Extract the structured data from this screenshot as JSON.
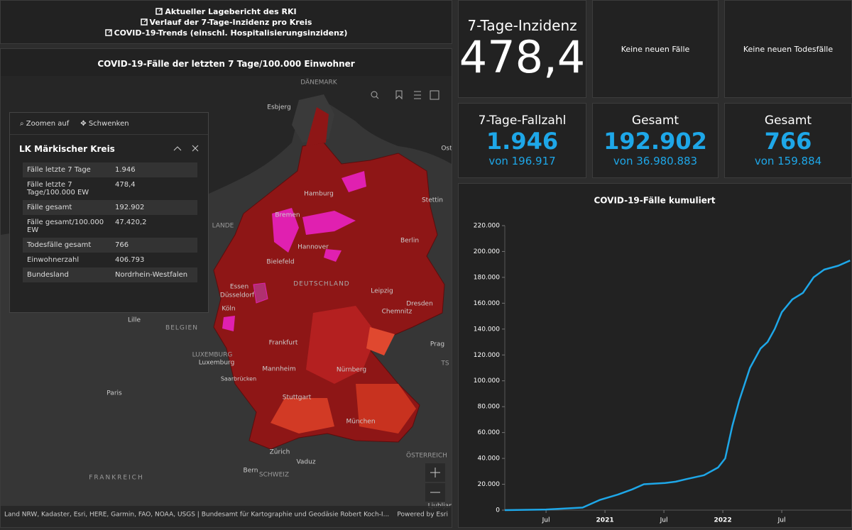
{
  "links": [
    "Aktueller Lagebericht des RKI",
    "Verlauf der 7-Tage-Inzidenz pro Kreis",
    "COVID-19-Trends (einschl. Hospitalisierungsinzidenz)"
  ],
  "map": {
    "title": "COVID-19-Fälle der letzten 7 Tage/100.000 Einwohner",
    "labels": [
      "DÄNEMARK",
      "Esbjerg",
      "Hamburg",
      "Stettin",
      "Bremen",
      "Berlin",
      "Hannover",
      "Bielefeld",
      "DEUTSCHLAND",
      "Essen",
      "Leipzig",
      "Düsseldorf",
      "Dresden",
      "Köln",
      "Chemnitz",
      "Lille",
      "BELGIEN",
      "Frankfurt",
      "Prag",
      "LUXEMBURG",
      "Luxemburg",
      "Mannheim",
      "Nürnberg",
      "Saarbrücken",
      "Paris",
      "Stuttgart",
      "München",
      "Zürich",
      "ÖSTERREICH",
      "Vaduz",
      "Bern",
      "SCHWEIZ",
      "FRANKREICH",
      "Ljubljana",
      "Ost",
      "LANDE",
      "TS"
    ],
    "popup": {
      "tools": [
        "Zoomen auf",
        "Schwenken"
      ],
      "title": "LK Märkischer Kreis",
      "rows": [
        [
          "Fälle letzte 7 Tage",
          "1.946"
        ],
        [
          "Fälle letzte 7 Tage/100.000 EW",
          "478,4"
        ],
        [
          "Fälle gesamt",
          "192.902"
        ],
        [
          "Fälle gesamt/100.000 EW",
          "47.420,2"
        ],
        [
          "Todesfälle gesamt",
          "766"
        ],
        [
          "Einwohnerzahl",
          "406.793"
        ],
        [
          "Bundesland",
          "Nordrhein-Westfalen"
        ]
      ]
    },
    "attribution": "Land NRW, Kadaster, Esri, HERE, Garmin, FAO, NOAA, USGS | Bundesamt für Kartographie und Geodäsie Robert Koch-I...",
    "powered_by": "Powered by Esri"
  },
  "tiles": [
    {
      "label": "7-Tage-Inzidenz",
      "value": "478,4"
    },
    {
      "text": "Keine neuen Fälle"
    },
    {
      "text": "Keine neuen Todesfälle"
    },
    {
      "label": "7-Tage-Fallzahl",
      "value": "1.946",
      "sub": "von 196.917"
    },
    {
      "label": "Gesamt",
      "value": "192.902",
      "sub": "von 36.980.883"
    },
    {
      "label": "Gesamt",
      "value": "766",
      "sub": "von 159.884"
    }
  ],
  "chart_data": {
    "type": "line",
    "title": "COVID-19-Fälle kumuliert",
    "color": "#1ea7e8",
    "x": [
      2020.15,
      2020.5,
      2020.81,
      2020.96,
      2021.11,
      2021.23,
      2021.33,
      2021.51,
      2021.6,
      2021.69,
      2021.84,
      2021.96,
      2022.02,
      2022.08,
      2022.14,
      2022.23,
      2022.32,
      2022.38,
      2022.44,
      2022.5,
      2022.59,
      2022.68,
      2022.77,
      2022.86,
      2022.98,
      2023.08
    ],
    "values": [
      0,
      500,
      2000,
      8000,
      12000,
      16000,
      20000,
      21000,
      22000,
      24000,
      27000,
      33000,
      40000,
      65000,
      85000,
      110000,
      125000,
      130000,
      140000,
      153000,
      163000,
      168000,
      180000,
      186000,
      189000,
      193000
    ],
    "xlim": [
      2020.15,
      2023.09
    ],
    "xticks": [
      {
        "value": 2020.5,
        "label": "Jul"
      },
      2021,
      {
        "value": 2021.5,
        "label": "Jul"
      },
      2022,
      {
        "value": 2022.5,
        "label": "Jul"
      }
    ],
    "ylim": [
      0,
      220000
    ],
    "yticks": [
      0,
      {
        "value": 20000,
        "label": "20.000"
      },
      {
        "value": 40000,
        "label": "40.000"
      },
      {
        "value": 60000,
        "label": "60.000"
      },
      {
        "value": 80000,
        "label": "80.000"
      },
      {
        "value": 100000,
        "label": "100.000"
      },
      {
        "value": 120000,
        "label": "120.000"
      },
      {
        "value": 140000,
        "label": "140.000"
      },
      {
        "value": 160000,
        "label": "160.000"
      },
      {
        "value": 180000,
        "label": "180.000"
      },
      {
        "value": 200000,
        "label": "200.000"
      },
      {
        "value": 220000,
        "label": "220.000"
      }
    ]
  }
}
